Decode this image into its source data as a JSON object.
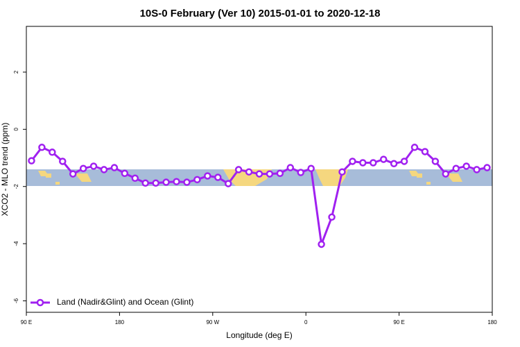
{
  "chart_data": {
    "type": "line",
    "title": "10S-0 February (Ver 10)   2015-01-01 to 2020-12-18",
    "x_label": "Longitude (deg E)",
    "y_label": "XCO2 - MLO trend (ppm)",
    "x": [
      95,
      105,
      115,
      125,
      135,
      145,
      155,
      165,
      175,
      185,
      195,
      205,
      215,
      225,
      235,
      245,
      255,
      265,
      275,
      285,
      295,
      305,
      315,
      325,
      335,
      345,
      355,
      365,
      375,
      385,
      395,
      405,
      415,
      425,
      435,
      445,
      455,
      465,
      475,
      485,
      495,
      505,
      515,
      525,
      535
    ],
    "series": [
      {
        "name": "Land (Nadir&Glint) and Ocean (Glint)",
        "color": "#a020f0",
        "values": [
          -1.1,
          -0.63,
          -0.8,
          -1.12,
          -1.56,
          -1.37,
          -1.29,
          -1.41,
          -1.34,
          -1.54,
          -1.71,
          -1.88,
          -1.88,
          -1.85,
          -1.83,
          -1.85,
          -1.76,
          -1.63,
          -1.68,
          -1.9,
          -1.41,
          -1.49,
          -1.56,
          -1.56,
          -1.54,
          -1.34,
          -1.51,
          -1.37,
          -4.02,
          -3.07,
          -1.49,
          -1.12,
          -1.17,
          -1.17,
          -1.05,
          -1.2,
          -1.12,
          -0.63,
          -0.78,
          -1.12,
          -1.56,
          -1.37,
          -1.29,
          -1.41,
          -1.34
        ]
      }
    ],
    "xlim": [
      90,
      540
    ],
    "ylim": [
      -6.4,
      3.6
    ],
    "xticks": [
      {
        "value": 90,
        "label": "90 E"
      },
      180,
      {
        "value": 270,
        "label": "90 W"
      },
      {
        "value": 360,
        "label": "0"
      },
      {
        "value": 450,
        "label": "90 E"
      },
      {
        "value": 540,
        "label": "180"
      }
    ],
    "yticks": [
      2,
      0,
      -2,
      -4,
      -6
    ],
    "legend": "bottom-left"
  }
}
